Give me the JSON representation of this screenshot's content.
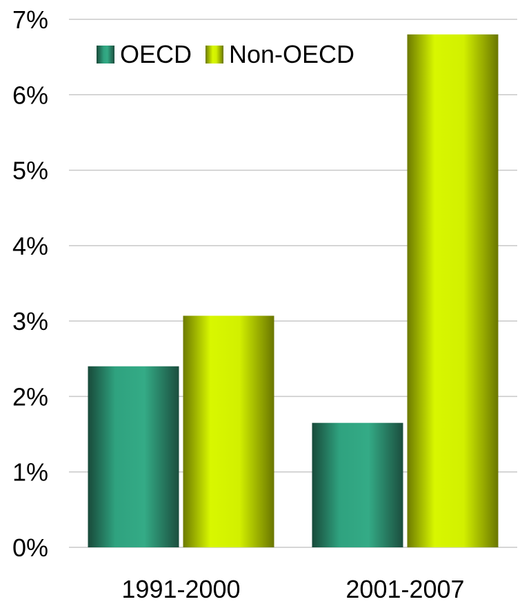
{
  "chart_data": {
    "type": "bar",
    "title": "",
    "xlabel": "",
    "ylabel": "",
    "categories": [
      "1991-2000",
      "2001-2007"
    ],
    "series": [
      {
        "name": "OECD",
        "values": [
          2.4,
          1.65
        ],
        "color": "#2fa27f"
      },
      {
        "name": "Non-OECD",
        "values": [
          3.07,
          6.8
        ],
        "color": "#d4f000"
      }
    ],
    "ylim": [
      0,
      7
    ],
    "yticks": [
      "0%",
      "1%",
      "2%",
      "3%",
      "4%",
      "5%",
      "6%",
      "7%"
    ],
    "grid": true,
    "legend": "top-left"
  }
}
